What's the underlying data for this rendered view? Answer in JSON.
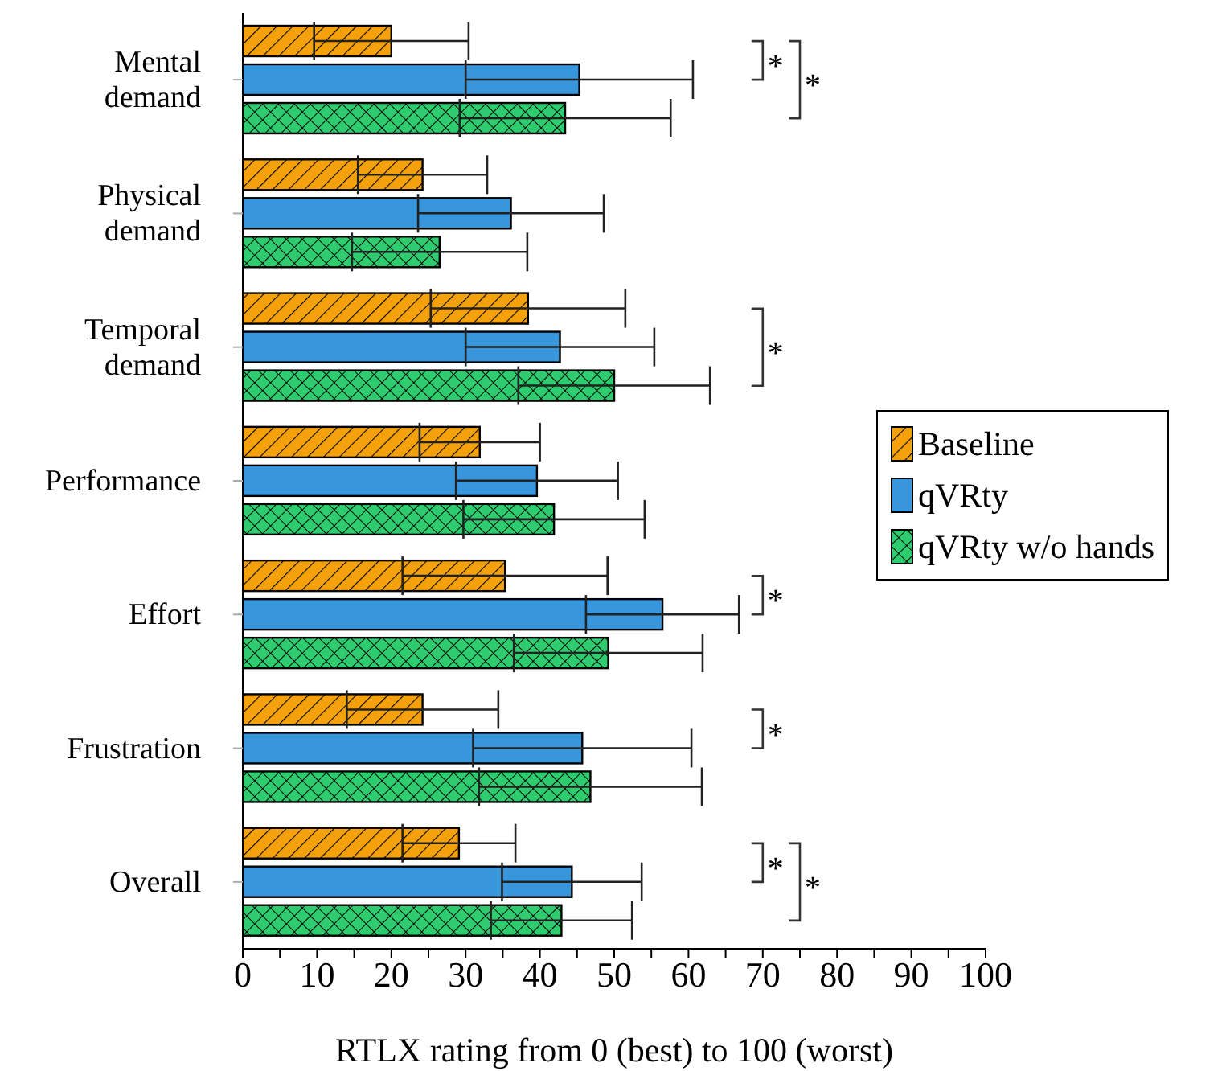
{
  "chart_data": {
    "type": "bar",
    "orientation": "horizontal",
    "xlabel": "RTLX rating from 0 (best) to 100 (worst)",
    "categories": [
      "Mental demand",
      "Physical demand",
      "Temporal demand",
      "Performance",
      "Effort",
      "Frustration",
      "Overall"
    ],
    "series": [
      {
        "name": "Baseline",
        "color": "#f4a10c",
        "values": [
          20.0,
          24.2,
          38.4,
          31.9,
          35.3,
          24.2,
          29.1
        ],
        "errors": [
          10.4,
          8.7,
          13.1,
          8.1,
          13.8,
          10.2,
          7.6
        ]
      },
      {
        "name": "qVRty",
        "color": "#3796dc",
        "values": [
          45.3,
          36.1,
          42.7,
          39.6,
          56.5,
          45.7,
          44.3
        ],
        "errors": [
          15.3,
          12.5,
          12.7,
          10.9,
          10.3,
          14.7,
          9.4
        ]
      },
      {
        "name": "qVRty w/o hands",
        "color": "#2ecc6e",
        "values": [
          43.4,
          26.5,
          50.0,
          41.9,
          49.2,
          46.8,
          42.9
        ],
        "errors": [
          14.2,
          11.8,
          12.9,
          12.2,
          12.7,
          15.0,
          9.5
        ]
      }
    ],
    "xlim": [
      0,
      100
    ],
    "xticks": [
      0,
      {
        "value": 5,
        "label": null
      },
      10,
      {
        "value": 15,
        "label": null
      },
      20,
      {
        "value": 25,
        "label": null
      },
      30,
      {
        "value": 35,
        "label": null
      },
      40,
      {
        "value": 45,
        "label": null
      },
      50,
      {
        "value": 55,
        "label": null
      },
      60,
      {
        "value": 65,
        "label": null
      },
      70,
      {
        "value": 75,
        "label": null
      },
      80,
      {
        "value": 85,
        "label": null
      },
      90,
      {
        "value": 95,
        "label": null
      },
      100
    ],
    "grid": false,
    "legend": "right",
    "annotations": [
      "*",
      "*",
      "*",
      "*",
      "*",
      "*",
      "*"
    ]
  }
}
